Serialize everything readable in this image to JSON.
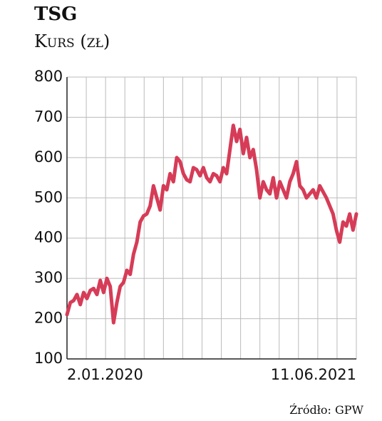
{
  "chart_data": {
    "type": "line",
    "title": "TSG",
    "subtitle": "Kurs (zł)",
    "source": "Źródło: GPW",
    "categories": [
      "2.01.2020",
      null,
      null,
      null,
      null,
      null,
      null,
      null,
      null,
      null,
      null,
      null,
      null,
      null,
      null,
      null,
      null,
      null,
      null,
      null,
      null,
      null,
      null,
      null,
      null,
      null,
      null,
      null,
      null,
      null,
      null,
      null,
      null,
      null,
      null,
      null,
      null,
      null,
      null,
      null,
      null,
      null,
      null,
      null,
      null,
      null,
      null,
      null,
      null,
      null,
      null,
      null,
      null,
      null,
      null,
      null,
      null,
      null,
      null,
      null,
      null,
      null,
      null,
      null,
      null,
      null,
      null,
      null,
      null,
      null,
      null,
      null,
      null,
      null,
      null,
      null,
      null,
      null,
      null,
      null,
      null,
      null,
      null,
      null,
      null,
      null,
      null,
      "11.06.2021"
    ],
    "series": [
      {
        "name": "TSG",
        "color": "#d63c57",
        "values": [
          210,
          240,
          245,
          260,
          235,
          265,
          250,
          270,
          275,
          260,
          295,
          265,
          300,
          280,
          190,
          240,
          280,
          290,
          320,
          310,
          360,
          390,
          440,
          455,
          460,
          480,
          530,
          500,
          470,
          530,
          520,
          560,
          540,
          600,
          590,
          560,
          545,
          540,
          575,
          570,
          555,
          575,
          550,
          540,
          560,
          555,
          540,
          575,
          560,
          620,
          680,
          640,
          670,
          610,
          650,
          600,
          620,
          570,
          500,
          540,
          520,
          510,
          550,
          500,
          540,
          520,
          500,
          540,
          560,
          590,
          530,
          520,
          500,
          510,
          520,
          500,
          530,
          515,
          500,
          480,
          460,
          420,
          390,
          440,
          430,
          460,
          420,
          460
        ]
      }
    ],
    "ylim": [
      100,
      800
    ],
    "yticks": [
      100,
      200,
      300,
      400,
      500,
      600,
      700,
      800
    ],
    "grid": true
  }
}
